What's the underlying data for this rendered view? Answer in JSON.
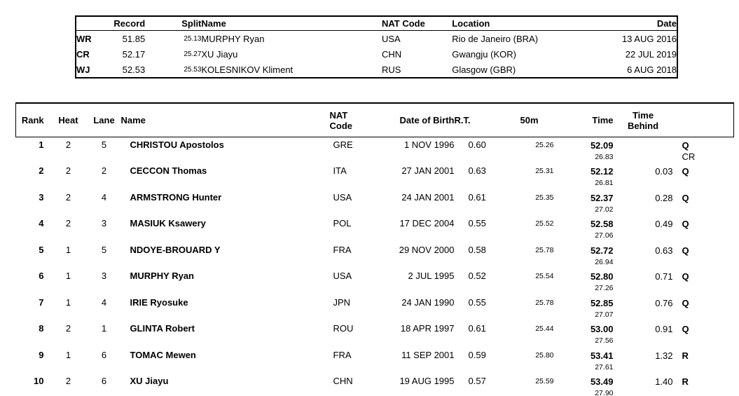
{
  "records_table": {
    "headers": {
      "type": "",
      "record": "Record",
      "split": "Split",
      "name": "Name",
      "nat_code": "NAT Code",
      "location": "Location",
      "date": "Date"
    },
    "rows": [
      {
        "type": "WR",
        "record": "51.85",
        "split": "25.13",
        "name": "MURPHY Ryan",
        "nat": "USA",
        "location": "Rio de Janeiro (BRA)",
        "date": "13 AUG 2016"
      },
      {
        "type": "CR",
        "record": "52.17",
        "split": "25.27",
        "name": "XU Jiayu",
        "nat": "CHN",
        "location": "Gwangju (KOR)",
        "date": "22 JUL 2019"
      },
      {
        "type": "WJ",
        "record": "52.53",
        "split": "25.53",
        "name": "KOLESNIKOV Kliment",
        "nat": "RUS",
        "location": "Glasgow (GBR)",
        "date": "6 AUG 2018"
      }
    ]
  },
  "results_table": {
    "headers": {
      "rank": "Rank",
      "heat": "Heat",
      "lane": "Lane",
      "name": "Name",
      "nat_code": "NAT\nCode",
      "dob": "Date of Birth",
      "rt": "R.T.",
      "m50": "50m",
      "time": "Time",
      "behind": "Time\nBehind"
    },
    "rows": [
      {
        "rank": "1",
        "heat": "2",
        "lane": "5",
        "name": "CHRISTOU Apostolos",
        "nat": "GRE",
        "dob": "1 NOV 1996",
        "rt": "0.60",
        "m50": "25.26",
        "time": "52.09",
        "split2": "26.83",
        "behind": "",
        "qual": "Q",
        "note": "CR"
      },
      {
        "rank": "2",
        "heat": "2",
        "lane": "2",
        "name": "CECCON Thomas",
        "nat": "ITA",
        "dob": "27 JAN 2001",
        "rt": "0.63",
        "m50": "25.31",
        "time": "52.12",
        "split2": "26.81",
        "behind": "0.03",
        "qual": "Q",
        "note": ""
      },
      {
        "rank": "3",
        "heat": "2",
        "lane": "4",
        "name": "ARMSTRONG Hunter",
        "nat": "USA",
        "dob": "24 JAN 2001",
        "rt": "0.61",
        "m50": "25.35",
        "time": "52.37",
        "split2": "27.02",
        "behind": "0.28",
        "qual": "Q",
        "note": ""
      },
      {
        "rank": "4",
        "heat": "2",
        "lane": "3",
        "name": "MASIUK Ksawery",
        "nat": "POL",
        "dob": "17 DEC 2004",
        "rt": "0.55",
        "m50": "25.52",
        "time": "52.58",
        "split2": "27.06",
        "behind": "0.49",
        "qual": "Q",
        "note": ""
      },
      {
        "rank": "5",
        "heat": "1",
        "lane": "5",
        "name": "NDOYE-BROUARD Y",
        "nat": "FRA",
        "dob": "29 NOV 2000",
        "rt": "0.58",
        "m50": "25.78",
        "time": "52.72",
        "split2": "26.94",
        "behind": "0.63",
        "qual": "Q",
        "note": ""
      },
      {
        "rank": "6",
        "heat": "1",
        "lane": "3",
        "name": "MURPHY Ryan",
        "nat": "USA",
        "dob": "2 JUL 1995",
        "rt": "0.52",
        "m50": "25.54",
        "time": "52.80",
        "split2": "27.26",
        "behind": "0.71",
        "qual": "Q",
        "note": ""
      },
      {
        "rank": "7",
        "heat": "1",
        "lane": "4",
        "name": "IRIE Ryosuke",
        "nat": "JPN",
        "dob": "24 JAN 1990",
        "rt": "0.55",
        "m50": "25.78",
        "time": "52.85",
        "split2": "27.07",
        "behind": "0.76",
        "qual": "Q",
        "note": ""
      },
      {
        "rank": "8",
        "heat": "2",
        "lane": "1",
        "name": "GLINTA Robert",
        "nat": "ROU",
        "dob": "18 APR 1997",
        "rt": "0.61",
        "m50": "25.44",
        "time": "53.00",
        "split2": "27.56",
        "behind": "0.91",
        "qual": "Q",
        "note": ""
      },
      {
        "rank": "9",
        "heat": "1",
        "lane": "6",
        "name": "TOMAC Mewen",
        "nat": "FRA",
        "dob": "11 SEP 2001",
        "rt": "0.59",
        "m50": "25.80",
        "time": "53.41",
        "split2": "27.61",
        "behind": "1.32",
        "qual": "R",
        "note": ""
      },
      {
        "rank": "10",
        "heat": "2",
        "lane": "6",
        "name": "XU Jiayu",
        "nat": "CHN",
        "dob": "19 AUG 1995",
        "rt": "0.57",
        "m50": "25.59",
        "time": "53.49",
        "split2": "27.90",
        "behind": "1.40",
        "qual": "R",
        "note": ""
      }
    ]
  }
}
